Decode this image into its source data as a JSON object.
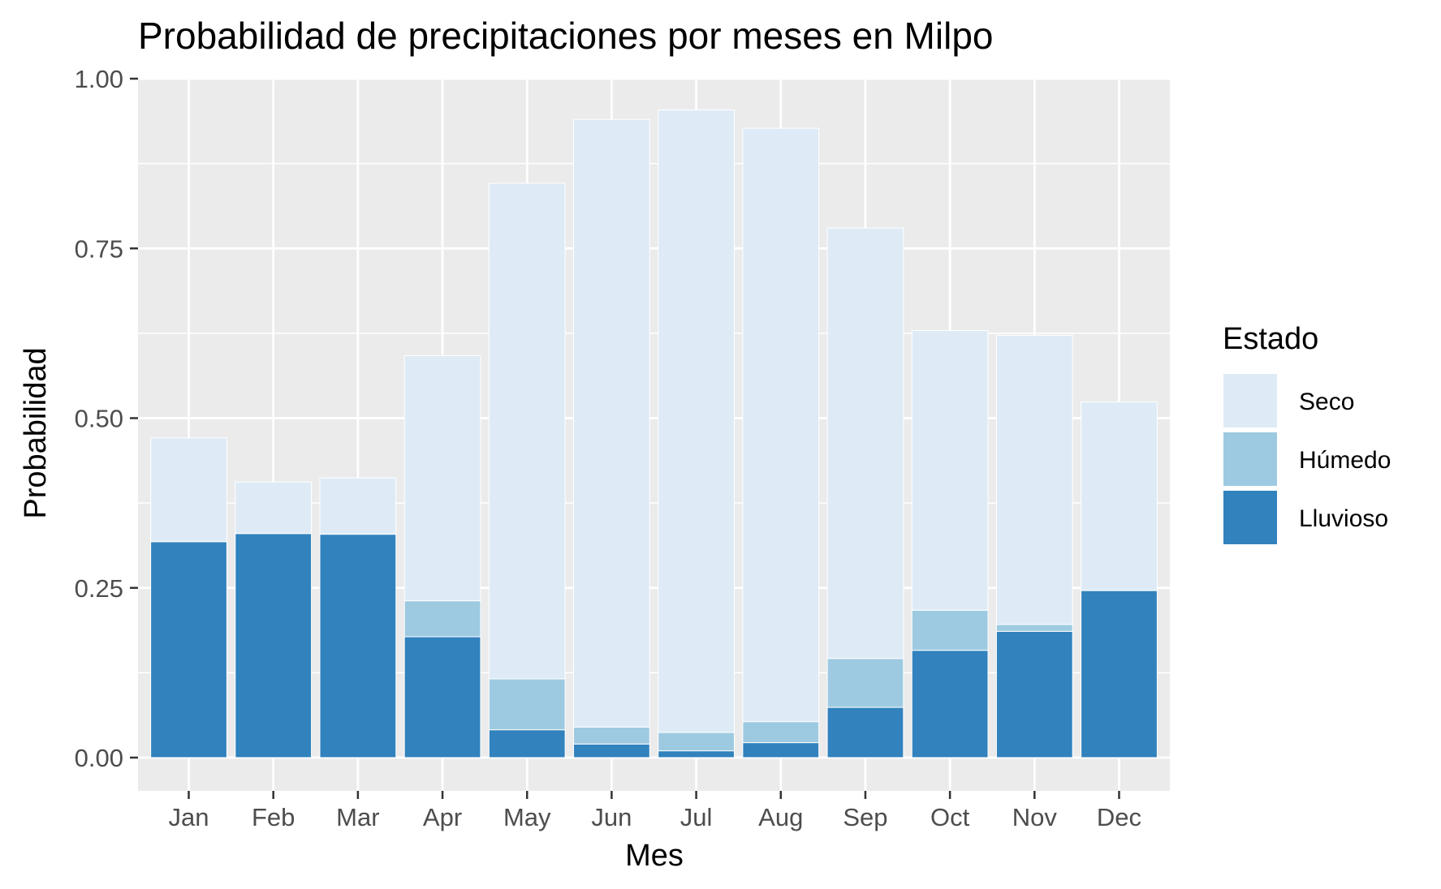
{
  "chart_data": {
    "type": "bar",
    "stacked": true,
    "title": "Probabilidad de precipitaciones por meses en Milpo",
    "xlabel": "Mes",
    "ylabel": "Probabilidad",
    "ylim": [
      0,
      1.05
    ],
    "yticks": [
      {
        "value": 0,
        "label": "0.00"
      },
      {
        "value": 0.25,
        "label": "0.25"
      },
      {
        "value": 0.5,
        "label": "0.50"
      },
      {
        "value": 0.75,
        "label": "0.75"
      },
      {
        "value": 1,
        "label": "1.00"
      }
    ],
    "grid": true,
    "legend_placement": "right",
    "legend_title": "Estado",
    "categories": [
      "Jan",
      "Feb",
      "Mar",
      "Apr",
      "May",
      "Jun",
      "Jul",
      "Aug",
      "Sep",
      "Oct",
      "Nov",
      "Dec"
    ],
    "series": [
      {
        "name": "Lluvioso",
        "color": "#3182bd",
        "values": [
          0.318,
          0.33,
          0.329,
          0.178,
          0.041,
          0.02,
          0.01,
          0.022,
          0.074,
          0.158,
          0.186,
          0.246
        ]
      },
      {
        "name": "Húmedo",
        "color": "#9ecae1",
        "values": [
          0.0,
          0.0,
          0.0,
          0.053,
          0.075,
          0.025,
          0.027,
          0.031,
          0.072,
          0.059,
          0.01,
          0.0
        ]
      },
      {
        "name": "Seco",
        "color": "#deebf7",
        "values": [
          0.153,
          0.076,
          0.083,
          0.361,
          0.73,
          0.895,
          0.917,
          0.874,
          0.634,
          0.412,
          0.426,
          0.278
        ]
      }
    ],
    "legend_order": [
      "Seco",
      "Húmedo",
      "Lluvioso"
    ],
    "colors": {
      "panel_background": "#ebebeb",
      "grid": "#ffffff",
      "axis_text": "#4d4d4d"
    }
  }
}
